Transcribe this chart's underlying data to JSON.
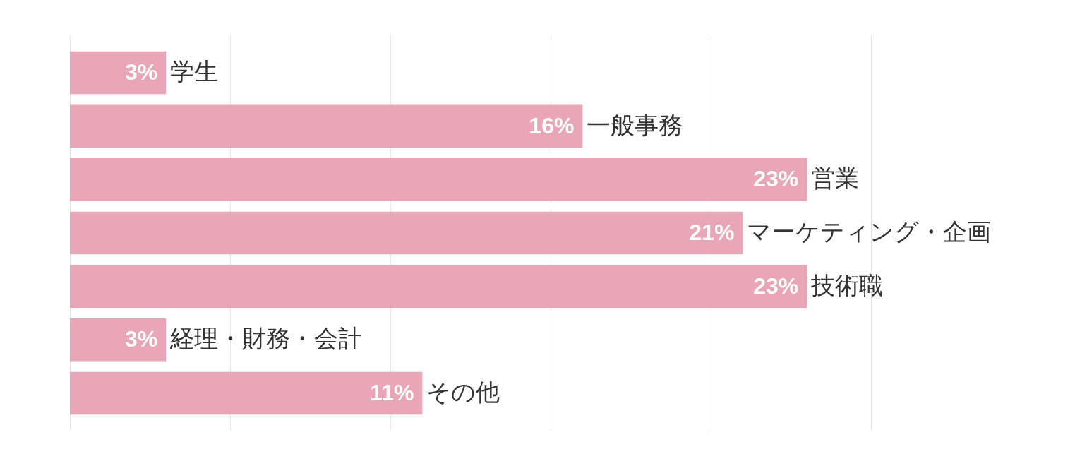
{
  "chart_data": {
    "type": "bar",
    "orientation": "horizontal",
    "categories": [
      "学生",
      "一般事務",
      "営業",
      "マーケティング・企画",
      "技術職",
      "経理・財務・会計",
      "その他"
    ],
    "values": [
      3,
      16,
      23,
      21,
      23,
      3,
      11
    ],
    "value_labels": [
      "3%",
      "16%",
      "23%",
      "21%",
      "23%",
      "3%",
      "11%"
    ],
    "color": "#e8a6b6",
    "xlim": [
      0,
      25
    ],
    "xticks": [
      {
        "value": 0,
        "label": null
      },
      {
        "value": 5,
        "label": null
      },
      {
        "value": 10,
        "label": null
      },
      {
        "value": 15,
        "label": null
      },
      {
        "value": 20,
        "label": null
      },
      {
        "value": 25,
        "label": null
      }
    ],
    "grid": "x"
  }
}
